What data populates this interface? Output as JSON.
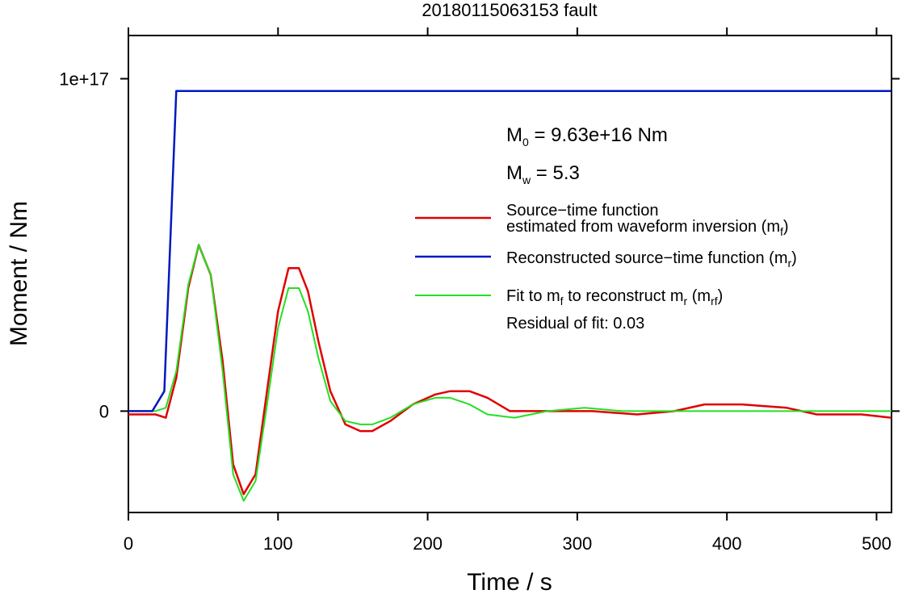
{
  "chart_data": {
    "type": "line",
    "title": "20180115063153 fault",
    "xlabel": "Time / s",
    "ylabel": "Moment / Nm",
    "xlim": [
      0,
      510
    ],
    "ylim": [
      -3.05e+16,
      1.13e+17
    ],
    "x_ticks": [
      0,
      100,
      200,
      300,
      400,
      500
    ],
    "x_tick_labels": [
      "0",
      "100",
      "200",
      "300",
      "400",
      "500"
    ],
    "y_ticks": [
      0,
      1e+17
    ],
    "y_tick_labels": [
      "0",
      "1e+17"
    ],
    "grid": false,
    "legend_position": "right",
    "annotations": {
      "m0_prefix": "M",
      "m0_sub": "0",
      "m0_value": " = 9.63e+16 Nm",
      "mw_prefix": "M",
      "mw_sub": "w",
      "mw_value": " = 5.3",
      "residual": "Residual of fit: 0.03"
    },
    "series": [
      {
        "name": "Source−time function estimated from waveform inversion (mf)",
        "legend_line1": "Source−time function",
        "legend_line2_main": "estimated from waveform inversion (m",
        "legend_line2_sub": "f",
        "legend_line2_end": ")",
        "color": "#e00000",
        "x": [
          0,
          10,
          18,
          25,
          32,
          40,
          47,
          55,
          63,
          70,
          77,
          85,
          92,
          100,
          107,
          114,
          120,
          127,
          135,
          145,
          155,
          163,
          175,
          190,
          205,
          215,
          228,
          240,
          255,
          280,
          310,
          340,
          365,
          385,
          410,
          440,
          460,
          475,
          490,
          510
        ],
        "y": [
          -1000000000000000.0,
          -1000000000000000.0,
          -1000000000000000.0,
          -2000000000000000.0,
          1e+16,
          3.7e+16,
          5e+16,
          4.1e+16,
          1.5e+16,
          -1.6e+16,
          -2.5e+16,
          -1.9e+16,
          4000000000000000.0,
          3e+16,
          4.3e+16,
          4.3e+16,
          3.6e+16,
          2.1e+16,
          6000000000000000.0,
          -4000000000000000.0,
          -6000000000000000.0,
          -6000000000000000.0,
          -3000000000000000.0,
          2000000000000000.0,
          5000000000000000.0,
          6000000000000000.0,
          6000000000000000.0,
          4000000000000000.0,
          0,
          0,
          0,
          -1000000000000000.0,
          0,
          2000000000000000.0,
          2000000000000000.0,
          1000000000000000.0,
          -1000000000000000.0,
          -1000000000000000.0,
          -1000000000000000.0,
          -2000000000000000.0
        ]
      },
      {
        "name": "Reconstructed source−time function (mr)",
        "legend_main": "Reconstructed source−time function (m",
        "legend_sub": "r",
        "legend_end": ")",
        "color": "#0018c0",
        "x": [
          0,
          16,
          24,
          32,
          510
        ],
        "y": [
          0,
          0,
          6000000000000000.0,
          9.63e+16,
          9.63e+16
        ]
      },
      {
        "name": "Fit to mf to reconstruct mr (mrf)",
        "legend_a": "Fit to m",
        "legend_a_sub": "f",
        "legend_b": " to reconstruct m",
        "legend_b_sub": "r",
        "legend_c": " (m",
        "legend_c_sub": "rf",
        "legend_d": ")",
        "color": "#22e022",
        "x": [
          0,
          10,
          18,
          25,
          32,
          40,
          47,
          55,
          63,
          70,
          77,
          85,
          92,
          100,
          107,
          114,
          120,
          127,
          135,
          145,
          155,
          163,
          175,
          190,
          205,
          215,
          228,
          240,
          258,
          280,
          305,
          330,
          360,
          385,
          410,
          440,
          460,
          490,
          510
        ],
        "y": [
          0,
          0,
          0,
          1000000000000000.0,
          1.2e+16,
          3.8e+16,
          5e+16,
          4.1e+16,
          1.2e+16,
          -1.9e+16,
          -2.7e+16,
          -2.1e+16,
          0,
          2.5e+16,
          3.7e+16,
          3.7e+16,
          3e+16,
          1.6e+16,
          3000000000000000.0,
          -3000000000000000.0,
          -4000000000000000.0,
          -4000000000000000.0,
          -2000000000000000.0,
          2000000000000000.0,
          4000000000000000.0,
          4000000000000000.0,
          2000000000000000.0,
          -1000000000000000.0,
          -2000000000000000.0,
          0,
          1000000000000000.0,
          0,
          0,
          0,
          0,
          0,
          0,
          0,
          0
        ]
      }
    ]
  }
}
